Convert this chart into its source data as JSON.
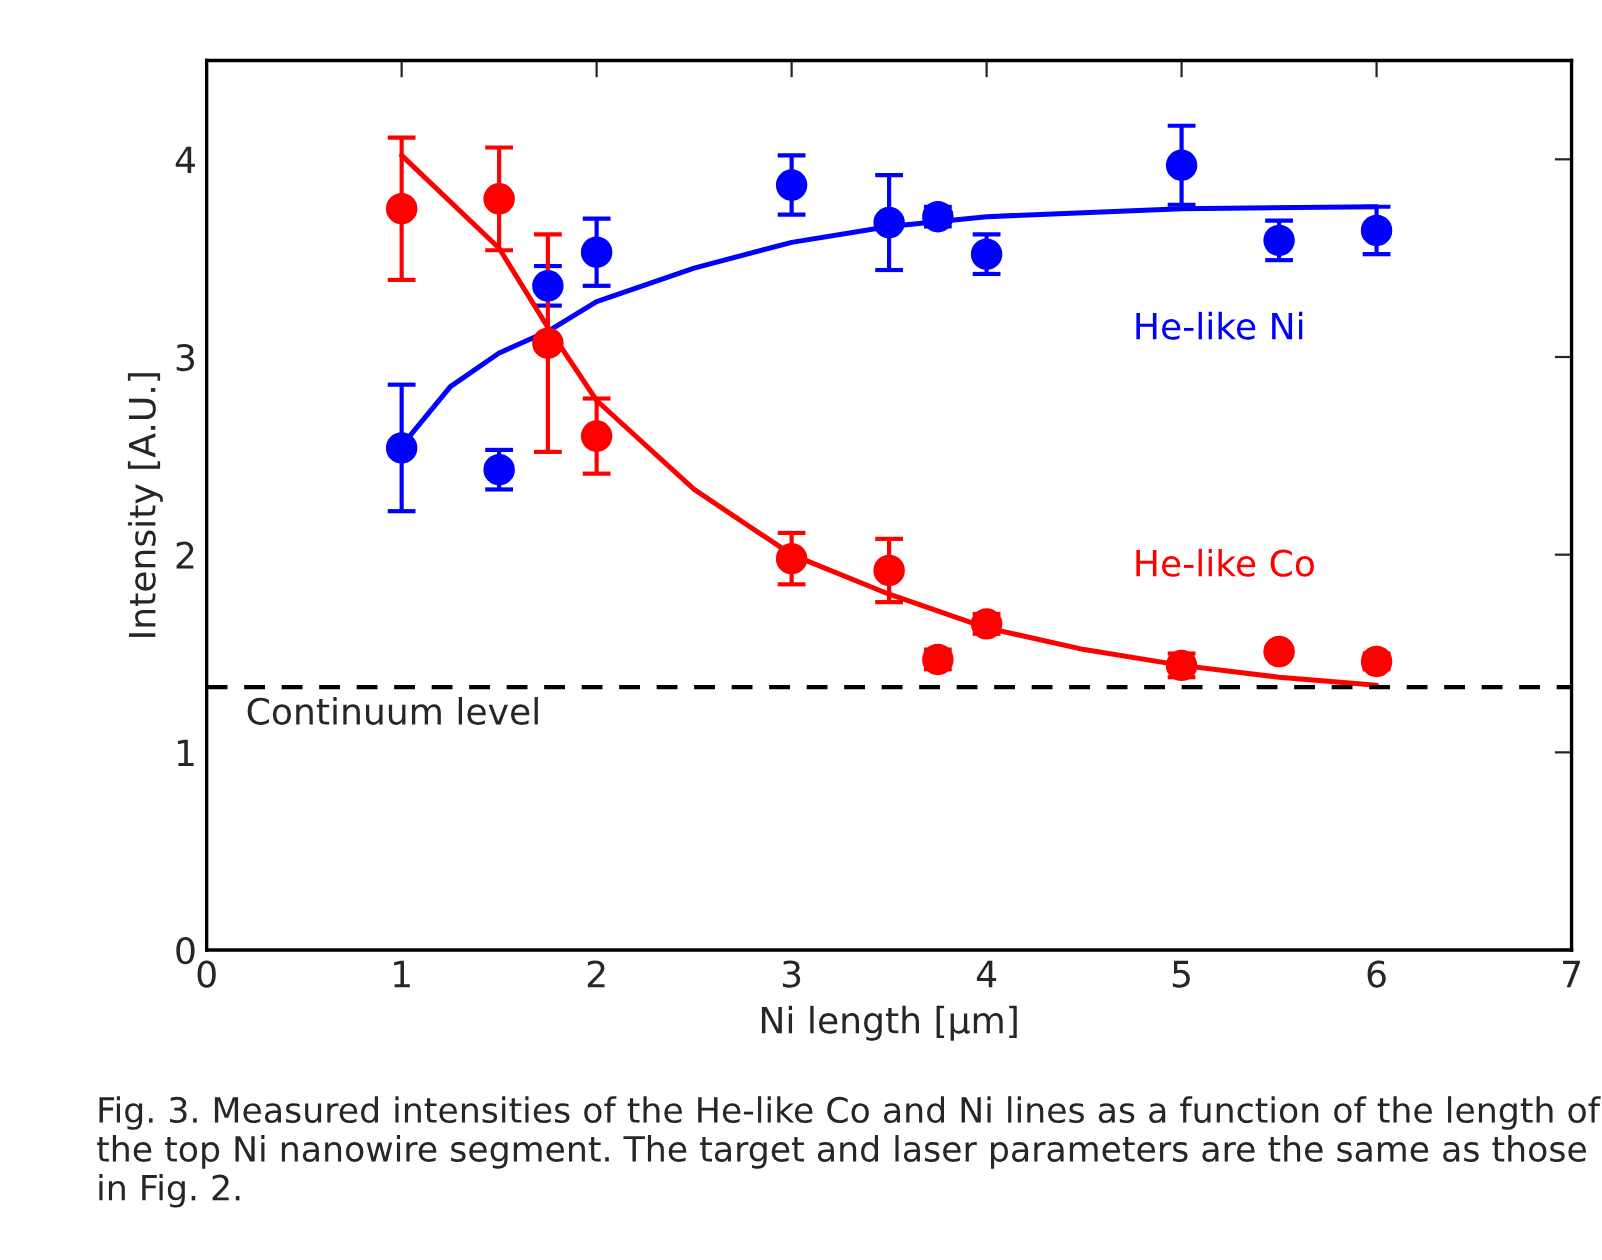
{
  "chart_data": {
    "type": "scatter",
    "xlabel": "Ni length [μm]",
    "ylabel": "Intensity [A.U.]",
    "xlim": [
      0,
      7
    ],
    "ylim": [
      0,
      4.5
    ],
    "xticks": [
      0,
      1,
      2,
      3,
      4,
      5,
      6,
      7
    ],
    "yticks": [
      0,
      1,
      2,
      3,
      4
    ],
    "grid": false,
    "legend": false,
    "series": [
      {
        "name": "He-like Ni",
        "marker": "circle",
        "color": "#0000ff",
        "x": [
          1,
          1.5,
          1.75,
          2,
          3,
          3.5,
          3.75,
          4,
          5,
          5.5,
          6
        ],
        "values": [
          2.54,
          2.43,
          3.36,
          3.53,
          3.87,
          3.68,
          3.71,
          3.52,
          3.97,
          3.59,
          3.64
        ],
        "errors": [
          0.32,
          0.1,
          0.1,
          0.17,
          0.15,
          0.24,
          0.05,
          0.1,
          0.2,
          0.1,
          0.12
        ]
      },
      {
        "name": "He-like Co",
        "marker": "circle",
        "color": "#ff0000",
        "x": [
          1,
          1.5,
          1.75,
          2,
          3,
          3.5,
          3.75,
          4,
          5,
          5.5,
          6
        ],
        "values": [
          3.75,
          3.8,
          3.07,
          2.6,
          1.98,
          1.92,
          1.47,
          1.65,
          1.44,
          1.51,
          1.46
        ],
        "errors": [
          0.36,
          0.26,
          0.55,
          0.19,
          0.13,
          0.16,
          0.05,
          0.05,
          0.06,
          null,
          0.04
        ]
      },
      {
        "type": "line",
        "color": "#0000ff",
        "x": [
          1,
          1.25,
          1.5,
          1.75,
          2,
          2.5,
          3,
          3.5,
          4,
          5,
          6
        ],
        "values": [
          2.55,
          2.85,
          3.02,
          3.13,
          3.28,
          3.45,
          3.58,
          3.66,
          3.71,
          3.75,
          3.76
        ]
      },
      {
        "type": "line",
        "color": "#ff0000",
        "x": [
          1,
          1.5,
          1.75,
          2,
          2.5,
          3,
          3.5,
          4,
          4.5,
          5,
          5.5,
          6
        ],
        "values": [
          4.02,
          3.55,
          3.15,
          2.78,
          2.33,
          2.0,
          1.8,
          1.63,
          1.52,
          1.44,
          1.38,
          1.34
        ]
      }
    ],
    "ref_lines": [
      {
        "axis": "y",
        "value": 1.33,
        "label": "Continuum level",
        "color": "#000000",
        "line_style": "dashed"
      }
    ],
    "annotations": [
      "Fig. 3. Measured intensities of the He-like Co and Ni lines as a function of the length of the top Ni nanowire segment. The target and laser parameters are the same as those in Fig. 2."
    ]
  }
}
